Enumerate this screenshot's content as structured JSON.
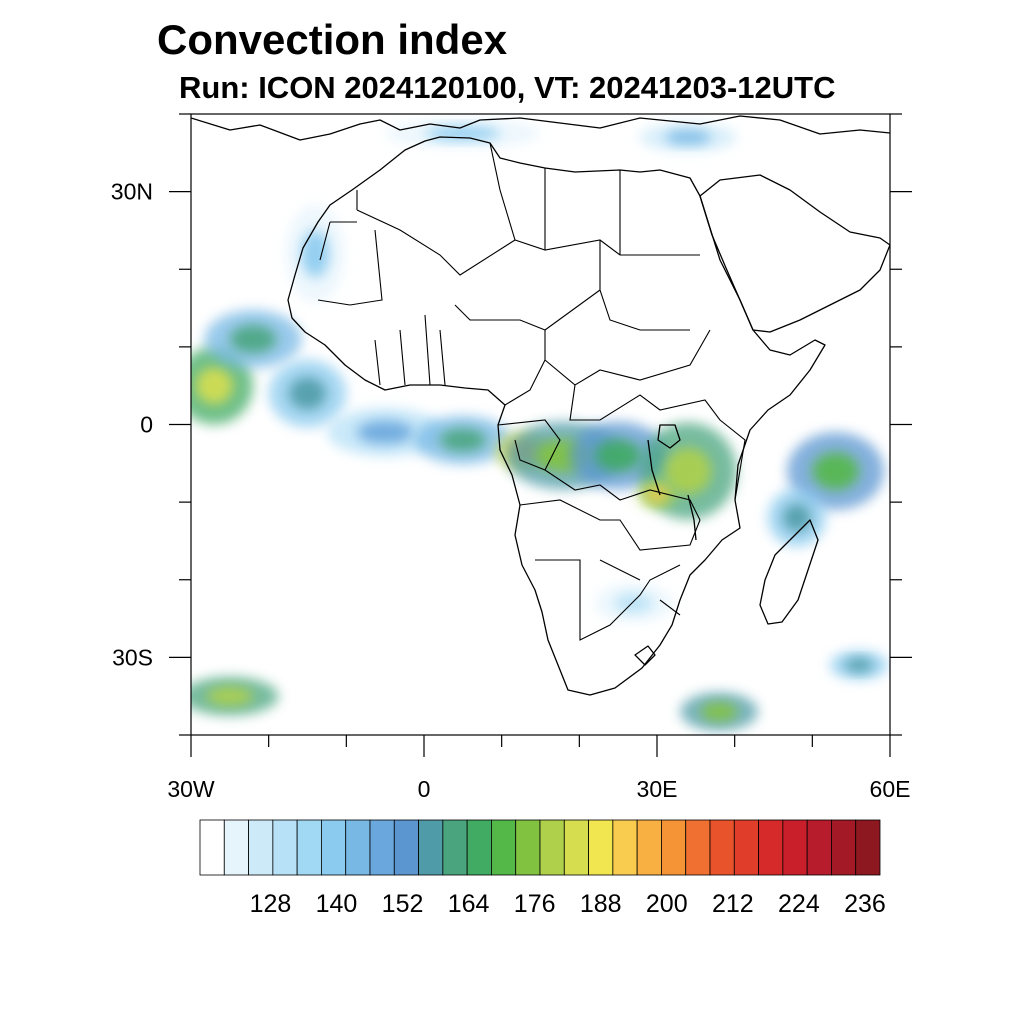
{
  "header": {
    "title": "Convection index",
    "subtitle": "Run: ICON 2024120100,  VT: 20241203-12UTC"
  },
  "map": {
    "region": "Africa",
    "lon_range": [
      -30,
      60
    ],
    "lat_range": [
      -40,
      40
    ],
    "coastline_color": "#000000",
    "background_color": "#ffffff"
  },
  "axes": {
    "lat_ticks": [
      {
        "value": 30,
        "label": "30N"
      },
      {
        "value": 0,
        "label": "0"
      },
      {
        "value": -30,
        "label": "30S"
      }
    ],
    "lon_ticks": [
      {
        "value": -30,
        "label": "30W"
      },
      {
        "value": 0,
        "label": "0"
      },
      {
        "value": 30,
        "label": "30E"
      },
      {
        "value": 60,
        "label": "60E"
      }
    ]
  },
  "colorbar": {
    "labels": [
      "128",
      "140",
      "152",
      "164",
      "176",
      "188",
      "200",
      "212",
      "224",
      "236"
    ],
    "colors": [
      "#ffffff",
      "#e6f4fc",
      "#cdeaf9",
      "#b7e1f7",
      "#a1d8f4",
      "#8bcbef",
      "#77b8e5",
      "#6aa7dd",
      "#5b96d1",
      "#4f9ba8",
      "#4aa57f",
      "#41aa63",
      "#54b848",
      "#81c341",
      "#aed04b",
      "#d6de4f",
      "#f2e650",
      "#f9cc4f",
      "#f8b042",
      "#f59337",
      "#ef7030",
      "#e9532c",
      "#e03e2b",
      "#d62a2a",
      "#c81f2b",
      "#b61c2b",
      "#a31a26",
      "#8e1820"
    ]
  },
  "chart_data": {
    "type": "heatmap",
    "title": "Convection index",
    "subtitle": "Run: ICON 2024120100,  VT: 20241203-12UTC",
    "xlabel": "",
    "ylabel": "",
    "xlim": [
      -30,
      60
    ],
    "ylim": [
      -40,
      40
    ],
    "colorbar_ticks": [
      128,
      140,
      152,
      164,
      176,
      188,
      200,
      212,
      224,
      236
    ],
    "colorbar_range": [
      116,
      248
    ],
    "blobs": [
      {
        "lon": -27,
        "lat": 5,
        "rx": 4,
        "ry": 4,
        "value": 190
      },
      {
        "lon": -22,
        "lat": 11,
        "rx": 5,
        "ry": 3,
        "value": 165
      },
      {
        "lon": -15,
        "lat": 4,
        "rx": 4,
        "ry": 3.5,
        "value": 158
      },
      {
        "lon": -5,
        "lat": -1,
        "rx": 6,
        "ry": 2.5,
        "value": 150
      },
      {
        "lon": 5,
        "lat": -2,
        "rx": 5,
        "ry": 2.5,
        "value": 165
      },
      {
        "lon": 13,
        "lat": -3.5,
        "rx": 3,
        "ry": 2,
        "value": 205
      },
      {
        "lon": 18,
        "lat": -4,
        "rx": 6,
        "ry": 3.5,
        "value": 178
      },
      {
        "lon": 25,
        "lat": -4,
        "rx": 5,
        "ry": 3.5,
        "value": 172
      },
      {
        "lon": 34,
        "lat": -6,
        "rx": 5,
        "ry": 5,
        "value": 182
      },
      {
        "lon": 30,
        "lat": -9,
        "rx": 2,
        "ry": 1.5,
        "value": 200
      },
      {
        "lon": 53,
        "lat": -6,
        "rx": 5,
        "ry": 4,
        "value": 175
      },
      {
        "lon": 48,
        "lat": -12,
        "rx": 3,
        "ry": 3,
        "value": 160
      },
      {
        "lon": -25,
        "lat": -35,
        "rx": 5,
        "ry": 2,
        "value": 185
      },
      {
        "lon": 38,
        "lat": -37,
        "rx": 4,
        "ry": 2,
        "value": 178
      },
      {
        "lon": 56,
        "lat": -31,
        "rx": 3,
        "ry": 1.5,
        "value": 158
      },
      {
        "lon": 34,
        "lat": 37,
        "rx": 5,
        "ry": 1.5,
        "value": 145
      },
      {
        "lon": 5,
        "lat": 37.5,
        "rx": 8,
        "ry": 1.5,
        "value": 140
      },
      {
        "lon": -14,
        "lat": 22,
        "rx": 3,
        "ry": 5,
        "value": 140
      },
      {
        "lon": 27,
        "lat": -23,
        "rx": 4,
        "ry": 2,
        "value": 132
      }
    ]
  }
}
